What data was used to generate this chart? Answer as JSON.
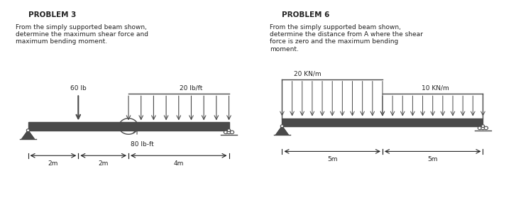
{
  "bg_color": "#ffffff",
  "p3_title": "PROBLEM 3",
  "p3_text": "From the simply supported beam shown,\ndetermine the maximum shear force and\nmaximum bending moment.",
  "p3_load1_label": "60 lb",
  "p3_load2_label": "20 lb/ft",
  "p3_moment_label": "80 lb-ft",
  "p3_dim1": "2m",
  "p3_dim2": "2m",
  "p3_dim3": "4m",
  "p6_title": "PROBLEM 6",
  "p6_text": "From the simply supported beam shown,\ndetermine the distance from A where the shear\nforce is zero and the maximum bending\nmoment.",
  "p6_load1_label": "20 KN/m",
  "p6_load2_label": "10 KN/m",
  "p6_dim1": "5m",
  "p6_dim2": "5m",
  "beam_color": "#4a4a4a",
  "support_color": "#4a4a4a",
  "arrow_color": "#4a4a4a",
  "dim_color": "#222222",
  "text_color": "#222222"
}
